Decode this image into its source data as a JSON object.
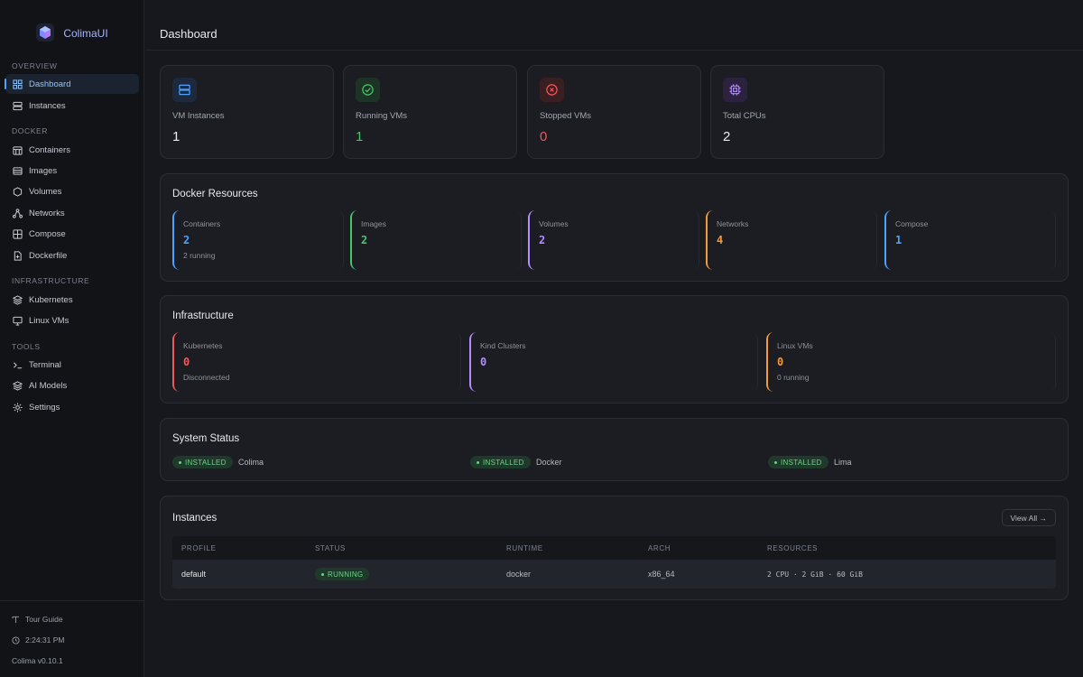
{
  "app": {
    "name": "ColimaUI"
  },
  "sidebar": {
    "sections": {
      "overview": "OVERVIEW",
      "docker": "DOCKER",
      "infrastructure": "INFRASTRUCTURE",
      "tools": "TOOLS"
    },
    "items": {
      "dashboard": "Dashboard",
      "instances": "Instances",
      "containers": "Containers",
      "images": "Images",
      "volumes": "Volumes",
      "networks": "Networks",
      "compose": "Compose",
      "dockerfile": "Dockerfile",
      "kubernetes": "Kubernetes",
      "linux_vms": "Linux VMs",
      "terminal": "Terminal",
      "ai_models": "AI Models",
      "settings": "Settings"
    },
    "footer": {
      "tour": "Tour Guide",
      "time": "2:24:31 PM",
      "version": "Colima v0.10.1"
    }
  },
  "header": {
    "title": "Dashboard"
  },
  "stats": [
    {
      "label": "VM Instances",
      "value": "1"
    },
    {
      "label": "Running VMs",
      "value": "1"
    },
    {
      "label": "Stopped VMs",
      "value": "0"
    },
    {
      "label": "Total CPUs",
      "value": "2"
    }
  ],
  "docker_resources": {
    "title": "Docker Resources",
    "tiles": [
      {
        "label": "Containers",
        "value": "2",
        "sub": "2 running"
      },
      {
        "label": "Images",
        "value": "2",
        "sub": ""
      },
      {
        "label": "Volumes",
        "value": "2",
        "sub": ""
      },
      {
        "label": "Networks",
        "value": "4",
        "sub": ""
      },
      {
        "label": "Compose",
        "value": "1",
        "sub": ""
      }
    ]
  },
  "infrastructure": {
    "title": "Infrastructure",
    "tiles": [
      {
        "label": "Kubernetes",
        "value": "0",
        "sub": "Disconnected"
      },
      {
        "label": "Kind Clusters",
        "value": "0",
        "sub": ""
      },
      {
        "label": "Linux VMs",
        "value": "0",
        "sub": "0 running"
      }
    ]
  },
  "system_status": {
    "title": "System Status",
    "badge": "INSTALLED",
    "items": [
      "Colima",
      "Docker",
      "Lima"
    ]
  },
  "instances": {
    "title": "Instances",
    "view_all": "View All →",
    "columns": [
      "PROFILE",
      "STATUS",
      "RUNTIME",
      "ARCH",
      "RESOURCES"
    ],
    "rows": [
      {
        "profile": "default",
        "status": "RUNNING",
        "runtime": "docker",
        "arch": "x86_64",
        "resources": "2 CPU · 2 GiB · 60 GiB"
      }
    ]
  },
  "colors": {
    "blue": "#4ea1ff",
    "green": "#4cc36a",
    "purple": "#b58cff",
    "orange": "#f59a3c",
    "red": "#f0595a"
  }
}
